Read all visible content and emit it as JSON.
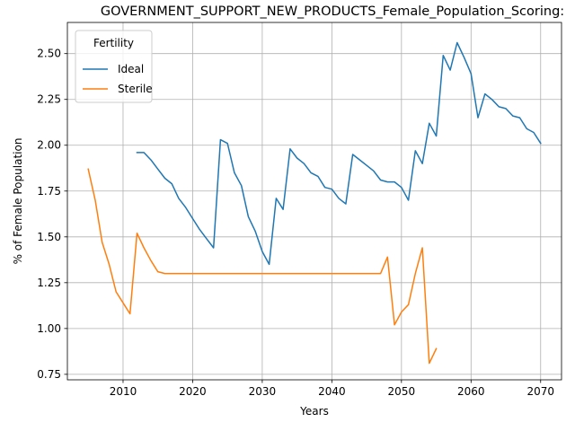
{
  "chart_data": {
    "type": "line",
    "title": "GOVERNMENT_SUPPORT_NEW_PRODUCTS_Female_Population_Scoring:",
    "xlabel": "Years",
    "ylabel": "% of Female Population",
    "xlim": [
      2002,
      2073
    ],
    "ylim": [
      0.72,
      2.67
    ],
    "xticks": [
      2010,
      2020,
      2030,
      2040,
      2050,
      2060,
      2070
    ],
    "yticks": [
      0.75,
      1.0,
      1.25,
      1.5,
      1.75,
      2.0,
      2.25,
      2.5
    ],
    "ytick_labels": [
      "0.75",
      "1.00",
      "1.25",
      "1.50",
      "1.75",
      "2.00",
      "2.25",
      "2.50"
    ],
    "grid": true,
    "legend": {
      "title": "Fertility",
      "placement": "top-left"
    },
    "series": [
      {
        "name": "Ideal",
        "color": "#1f77b4",
        "x": [
          2012,
          2013,
          2014,
          2015,
          2016,
          2017,
          2018,
          2019,
          2020,
          2021,
          2022,
          2023,
          2024,
          2025,
          2026,
          2027,
          2028,
          2029,
          2030,
          2031,
          2032,
          2033,
          2034,
          2035,
          2036,
          2037,
          2038,
          2039,
          2040,
          2041,
          2042,
          2043,
          2044,
          2045,
          2046,
          2047,
          2048,
          2049,
          2050,
          2051,
          2052,
          2053,
          2054,
          2055,
          2056,
          2057,
          2058,
          2059,
          2060,
          2061,
          2062,
          2063,
          2064,
          2065,
          2066,
          2067,
          2068,
          2069,
          2070
        ],
        "y": [
          1.96,
          1.96,
          1.92,
          1.87,
          1.82,
          1.79,
          1.71,
          1.66,
          1.6,
          1.54,
          1.49,
          1.44,
          2.03,
          2.01,
          1.85,
          1.78,
          1.61,
          1.53,
          1.42,
          1.35,
          1.71,
          1.65,
          1.98,
          1.93,
          1.9,
          1.85,
          1.83,
          1.77,
          1.76,
          1.71,
          1.68,
          1.95,
          1.92,
          1.89,
          1.86,
          1.81,
          1.8,
          1.8,
          1.77,
          1.7,
          1.97,
          1.9,
          2.12,
          2.05,
          2.49,
          2.41,
          2.56,
          2.48,
          2.39,
          2.15,
          2.28,
          2.25,
          2.21,
          2.2,
          2.16,
          2.15,
          2.09,
          2.07,
          2.01
        ]
      },
      {
        "name": "Sterile",
        "color": "#ff7f0e",
        "x": [
          2005,
          2006,
          2007,
          2008,
          2009,
          2010,
          2011,
          2012,
          2013,
          2014,
          2015,
          2016,
          2017,
          2018,
          2019,
          2020,
          2021,
          2022,
          2023,
          2024,
          2025,
          2026,
          2027,
          2028,
          2029,
          2030,
          2031,
          2032,
          2033,
          2034,
          2035,
          2036,
          2037,
          2038,
          2039,
          2040,
          2041,
          2042,
          2043,
          2044,
          2045,
          2046,
          2047,
          2048,
          2049,
          2050,
          2051,
          2052,
          2053,
          2054,
          2055
        ],
        "y": [
          1.87,
          1.7,
          1.47,
          1.35,
          1.2,
          1.14,
          1.08,
          1.52,
          1.44,
          1.37,
          1.31,
          1.3,
          1.3,
          1.3,
          1.3,
          1.3,
          1.3,
          1.3,
          1.3,
          1.3,
          1.3,
          1.3,
          1.3,
          1.3,
          1.3,
          1.3,
          1.3,
          1.3,
          1.3,
          1.3,
          1.3,
          1.3,
          1.3,
          1.3,
          1.3,
          1.3,
          1.3,
          1.3,
          1.3,
          1.3,
          1.3,
          1.3,
          1.3,
          1.39,
          1.02,
          1.09,
          1.13,
          1.3,
          1.44,
          0.81,
          0.89
        ]
      }
    ]
  }
}
